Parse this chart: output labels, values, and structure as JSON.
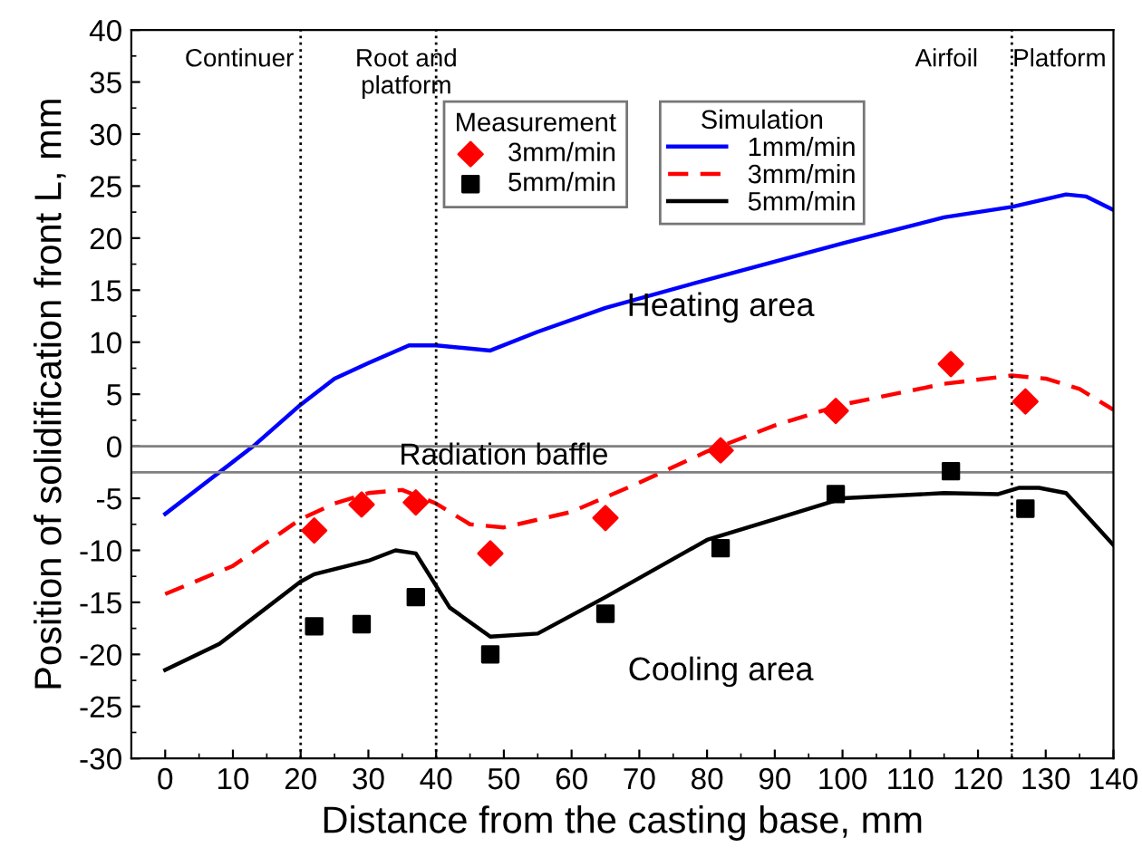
{
  "chart_data": {
    "type": "line",
    "xlabel": "Distance from the casting base, mm",
    "ylabel": "Position of solidification front L, mm",
    "xlim": [
      -5,
      140
    ],
    "xticks": [
      0,
      10,
      20,
      30,
      40,
      50,
      60,
      70,
      80,
      90,
      100,
      110,
      120,
      130,
      140
    ],
    "ylim": [
      -30,
      40
    ],
    "yticks": [
      -30,
      -25,
      -20,
      -15,
      -10,
      -5,
      0,
      5,
      10,
      15,
      20,
      25,
      30,
      35,
      40
    ],
    "grid": false,
    "legend": "top",
    "annotations": [
      "Continuer",
      "Root and\nplatform",
      "Airfoil",
      "Platform",
      "Heating area",
      "Cooling area",
      "Measurement",
      "Simulation"
    ],
    "ref_lines": [
      {
        "axis": "x",
        "value": 20,
        "line_style": "dotted",
        "color": "#000000"
      },
      {
        "axis": "x",
        "value": 40,
        "line_style": "dotted",
        "color": "#000000"
      },
      {
        "axis": "x",
        "value": 125,
        "line_style": "dotted",
        "color": "#000000"
      },
      {
        "axis": "y",
        "value": 0,
        "color": "#808080"
      },
      {
        "axis": "y",
        "value": -2.5,
        "label": "Radiation baffle",
        "color": "#808080"
      }
    ],
    "series": [
      {
        "name": "3mm/min",
        "type": "scatter",
        "marker": "diamond",
        "color": "#ff0000",
        "x": [
          22,
          29,
          37,
          48,
          65,
          82,
          99,
          116,
          127
        ],
        "values": [
          -8.1,
          -5.6,
          -5.4,
          -10.3,
          -6.9,
          -0.4,
          3.4,
          7.9,
          4.3
        ]
      },
      {
        "name": "5mm/min",
        "type": "scatter",
        "marker": "square",
        "color": "#000000",
        "x": [
          22,
          29,
          37,
          48,
          65,
          82,
          99,
          116,
          127
        ],
        "values": [
          -17.3,
          -17.1,
          -14.5,
          -20,
          -16.1,
          -9.8,
          -4.6,
          -2.4,
          -6
        ]
      },
      {
        "name": "1mm/min",
        "line_style": "solid",
        "color": "#0000ff",
        "x": [
          0,
          7,
          13,
          20,
          25,
          30,
          36,
          40,
          48,
          55,
          65,
          80,
          100,
          115,
          125,
          133,
          136,
          140
        ],
        "values": [
          -6.5,
          -3,
          0,
          4,
          6.5,
          8,
          9.7,
          9.7,
          9.2,
          11,
          13.3,
          16,
          19.5,
          22,
          23,
          24.2,
          24,
          22.7
        ]
      },
      {
        "name": "3mm/min",
        "line_style": "dashed",
        "color": "#ff0000",
        "x": [
          0,
          10,
          20,
          25,
          30,
          35,
          40,
          45,
          50,
          60,
          70,
          80,
          90,
          100,
          115,
          125,
          130,
          135,
          140
        ],
        "values": [
          -14.2,
          -11.5,
          -7,
          -5.5,
          -4.5,
          -4.2,
          -5.5,
          -7.5,
          -7.8,
          -6.3,
          -3.5,
          -0.5,
          2,
          4,
          6,
          6.8,
          6.5,
          5.5,
          3.5
        ]
      },
      {
        "name": "5mm/min",
        "line_style": "solid",
        "color": "#000000",
        "x": [
          0,
          8,
          20,
          22,
          30,
          34,
          37,
          42,
          48,
          55,
          65,
          80,
          90,
          100,
          115,
          123,
          126,
          129,
          133,
          140
        ],
        "values": [
          -21.5,
          -19,
          -13,
          -12.3,
          -11,
          -10,
          -10.3,
          -15.5,
          -18.3,
          -18,
          -14.5,
          -9,
          -7,
          -5,
          -4.5,
          -4.6,
          -4,
          -4,
          -4.5,
          -9.5
        ]
      }
    ]
  }
}
